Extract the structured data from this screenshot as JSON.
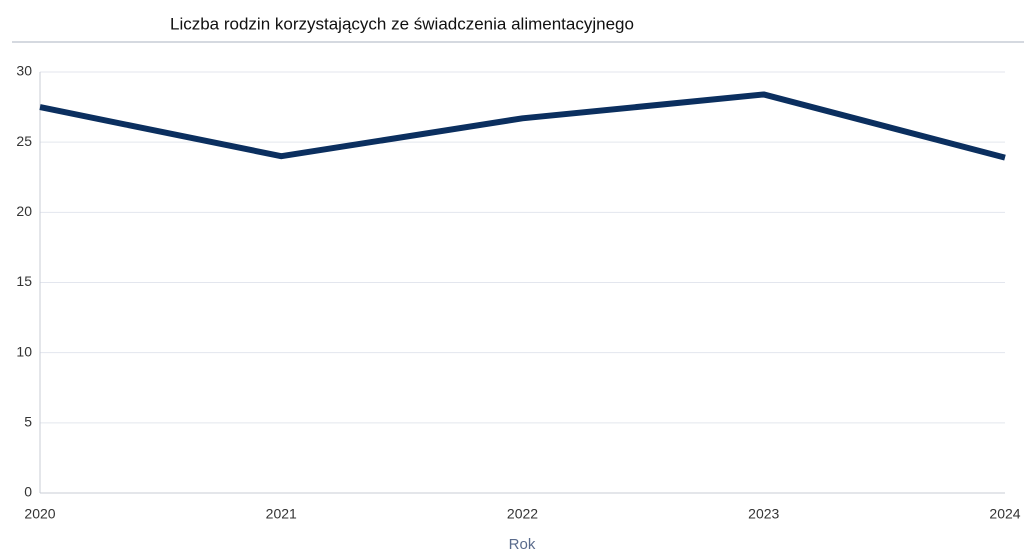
{
  "chart_data": {
    "type": "line",
    "title": "Liczba rodzin korzystających ze świadczenia alimentacyjnego",
    "x_label": "Rok",
    "categories": [
      "2020",
      "2021",
      "2022",
      "2023",
      "2024"
    ],
    "series": [
      {
        "name": "Liczba rodzin",
        "color": "#0b2f5f",
        "values": [
          27.5,
          24.0,
          26.7,
          28.4,
          23.9
        ]
      }
    ],
    "ylim": [
      0,
      30
    ],
    "yticks": [
      0,
      5,
      10,
      15,
      20,
      25,
      30
    ],
    "grid": true,
    "legend": false
  }
}
